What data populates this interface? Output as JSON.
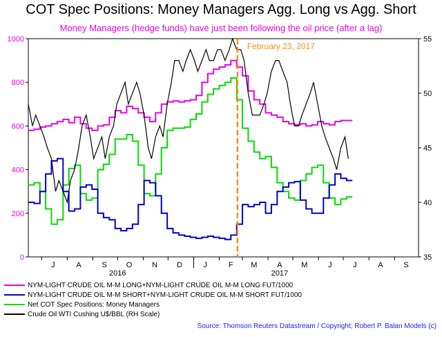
{
  "chart_data": {
    "type": "line",
    "title": "COT Spec Positions: Money Managers Agg. Long vs Agg. Short",
    "subtitle": "Money Managers (hedge funds) have just been following the oil price (after a lag)",
    "x_ticks": [
      "J",
      "A",
      "S",
      "O",
      "N",
      "D",
      "J",
      "F",
      "M",
      "A",
      "M",
      "J",
      "J",
      "A",
      "S"
    ],
    "x_ticks_dates": [
      "2016-07",
      "2016-08",
      "2016-09",
      "2016-10",
      "2016-11",
      "2016-12",
      "2017-01",
      "2017-02",
      "2017-03",
      "2017-04",
      "2017-05",
      "2017-06",
      "2017-07",
      "2017-08",
      "2017-09"
    ],
    "year_labels": [
      {
        "label": "2016",
        "date": "2016-10-01"
      },
      {
        "label": "2017",
        "date": "2017-04-15"
      }
    ],
    "x_range": [
      "2016-06-15",
      "2017-09-30"
    ],
    "y_left": {
      "range": [
        0,
        1000
      ],
      "ticks": [
        0,
        200,
        400,
        600,
        800,
        1000
      ]
    },
    "y_right": {
      "range": [
        35,
        55
      ],
      "ticks": [
        35,
        40,
        45,
        50,
        55
      ],
      "label": "RH Scale"
    },
    "annotation": {
      "label": "February 23, 2017",
      "date": "2017-02-23",
      "color": "#ff8c1a"
    },
    "series": [
      {
        "name": "NYM-LIGHT CRUDE OIL M-M LONG+NYM-LIGHT CRUDE OIL M-M LONG FUT/1000",
        "color": "#e600e6",
        "axis": "left",
        "step": true,
        "x": [
          "2016-06-15",
          "2016-06-22",
          "2016-06-29",
          "2016-07-06",
          "2016-07-13",
          "2016-07-20",
          "2016-07-27",
          "2016-08-03",
          "2016-08-10",
          "2016-08-17",
          "2016-08-24",
          "2016-08-31",
          "2016-09-07",
          "2016-09-14",
          "2016-09-21",
          "2016-09-28",
          "2016-10-05",
          "2016-10-12",
          "2016-10-19",
          "2016-10-26",
          "2016-11-02",
          "2016-11-09",
          "2016-11-16",
          "2016-11-23",
          "2016-11-30",
          "2016-12-07",
          "2016-12-14",
          "2016-12-21",
          "2016-12-28",
          "2017-01-04",
          "2017-01-11",
          "2017-01-18",
          "2017-01-25",
          "2017-02-01",
          "2017-02-08",
          "2017-02-15",
          "2017-02-22",
          "2017-03-01",
          "2017-03-08",
          "2017-03-15",
          "2017-03-22",
          "2017-03-29",
          "2017-04-05",
          "2017-04-12",
          "2017-04-19",
          "2017-04-26",
          "2017-05-03",
          "2017-05-10",
          "2017-05-17",
          "2017-05-24",
          "2017-05-31",
          "2017-06-07",
          "2017-06-14",
          "2017-06-21",
          "2017-06-28",
          "2017-07-05",
          "2017-07-12"
        ],
        "values": [
          580,
          585,
          595,
          600,
          610,
          620,
          630,
          615,
          640,
          610,
          590,
          580,
          600,
          605,
          640,
          670,
          660,
          690,
          680,
          660,
          640,
          620,
          660,
          700,
          710,
          715,
          710,
          715,
          720,
          740,
          800,
          840,
          860,
          870,
          880,
          900,
          870,
          830,
          760,
          720,
          700,
          660,
          650,
          640,
          620,
          610,
          605,
          610,
          600,
          605,
          620,
          610,
          605,
          620,
          625,
          625,
          625
        ]
      },
      {
        "name": "NYM-LIGHT CRUDE OIL M-M SHORT+NYM-LIGHT CRUDE OIL M-M SHORT FUT/1000",
        "color": "#0000cc",
        "axis": "left",
        "step": true,
        "x": [
          "2016-06-15",
          "2016-06-22",
          "2016-06-29",
          "2016-07-06",
          "2016-07-13",
          "2016-07-20",
          "2016-07-27",
          "2016-08-03",
          "2016-08-10",
          "2016-08-17",
          "2016-08-24",
          "2016-08-31",
          "2016-09-07",
          "2016-09-14",
          "2016-09-21",
          "2016-09-28",
          "2016-10-05",
          "2016-10-12",
          "2016-10-19",
          "2016-10-26",
          "2016-11-02",
          "2016-11-09",
          "2016-11-16",
          "2016-11-23",
          "2016-11-30",
          "2016-12-07",
          "2016-12-14",
          "2016-12-21",
          "2016-12-28",
          "2017-01-04",
          "2017-01-11",
          "2017-01-18",
          "2017-01-25",
          "2017-02-01",
          "2017-02-08",
          "2017-02-15",
          "2017-02-22",
          "2017-03-01",
          "2017-03-08",
          "2017-03-15",
          "2017-03-22",
          "2017-03-29",
          "2017-04-05",
          "2017-04-12",
          "2017-04-19",
          "2017-04-26",
          "2017-05-03",
          "2017-05-10",
          "2017-05-17",
          "2017-05-24",
          "2017-05-31",
          "2017-06-07",
          "2017-06-14",
          "2017-06-21",
          "2017-06-28",
          "2017-07-05",
          "2017-07-12"
        ],
        "values": [
          250,
          245,
          300,
          380,
          440,
          450,
          300,
          210,
          220,
          320,
          330,
          310,
          200,
          180,
          170,
          130,
          120,
          130,
          150,
          240,
          350,
          340,
          280,
          200,
          130,
          110,
          100,
          95,
          90,
          85,
          90,
          95,
          90,
          85,
          80,
          100,
          150,
          240,
          230,
          240,
          250,
          200,
          240,
          300,
          320,
          340,
          345,
          260,
          220,
          200,
          200,
          270,
          330,
          380,
          360,
          350,
          350
        ]
      },
      {
        "name": "Net COT Spec Positions: Money Managers",
        "color": "#00dd00",
        "axis": "left",
        "step": true,
        "x": [
          "2016-06-15",
          "2016-06-22",
          "2016-06-29",
          "2016-07-06",
          "2016-07-13",
          "2016-07-20",
          "2016-07-27",
          "2016-08-03",
          "2016-08-10",
          "2016-08-17",
          "2016-08-24",
          "2016-08-31",
          "2016-09-07",
          "2016-09-14",
          "2016-09-21",
          "2016-09-28",
          "2016-10-05",
          "2016-10-12",
          "2016-10-19",
          "2016-10-26",
          "2016-11-02",
          "2016-11-09",
          "2016-11-16",
          "2016-11-23",
          "2016-11-30",
          "2016-12-07",
          "2016-12-14",
          "2016-12-21",
          "2016-12-28",
          "2017-01-04",
          "2017-01-11",
          "2017-01-18",
          "2017-01-25",
          "2017-02-01",
          "2017-02-08",
          "2017-02-15",
          "2017-02-22",
          "2017-03-01",
          "2017-03-08",
          "2017-03-15",
          "2017-03-22",
          "2017-03-29",
          "2017-04-05",
          "2017-04-12",
          "2017-04-19",
          "2017-04-26",
          "2017-05-03",
          "2017-05-10",
          "2017-05-17",
          "2017-05-24",
          "2017-05-31",
          "2017-06-07",
          "2017-06-14",
          "2017-06-21",
          "2017-06-28",
          "2017-07-05",
          "2017-07-12"
        ],
        "values": [
          330,
          340,
          300,
          220,
          150,
          170,
          330,
          405,
          420,
          290,
          260,
          270,
          400,
          425,
          470,
          540,
          540,
          560,
          530,
          420,
          290,
          280,
          380,
          500,
          580,
          590,
          590,
          595,
          630,
          655,
          710,
          745,
          770,
          785,
          800,
          820,
          720,
          590,
          530,
          480,
          450,
          460,
          410,
          340,
          300,
          270,
          260,
          350,
          380,
          410,
          420,
          340,
          270,
          240,
          265,
          275,
          275
        ]
      },
      {
        "name": "Crude Oil WTI Cushing U$/BBL (RH Scale)",
        "color": "#000000",
        "axis": "right",
        "step": false,
        "x": [
          "2016-06-15",
          "2016-06-20",
          "2016-06-24",
          "2016-06-29",
          "2016-07-04",
          "2016-07-08",
          "2016-07-13",
          "2016-07-18",
          "2016-07-22",
          "2016-07-27",
          "2016-08-01",
          "2016-08-05",
          "2016-08-10",
          "2016-08-15",
          "2016-08-19",
          "2016-08-24",
          "2016-08-29",
          "2016-09-02",
          "2016-09-07",
          "2016-09-12",
          "2016-09-16",
          "2016-09-21",
          "2016-09-26",
          "2016-09-30",
          "2016-10-05",
          "2016-10-10",
          "2016-10-14",
          "2016-10-19",
          "2016-10-24",
          "2016-10-28",
          "2016-11-02",
          "2016-11-07",
          "2016-11-11",
          "2016-11-16",
          "2016-11-21",
          "2016-11-25",
          "2016-11-30",
          "2016-12-05",
          "2016-12-09",
          "2016-12-14",
          "2016-12-19",
          "2016-12-23",
          "2016-12-28",
          "2017-01-02",
          "2017-01-06",
          "2017-01-11",
          "2017-01-16",
          "2017-01-20",
          "2017-01-25",
          "2017-01-30",
          "2017-02-03",
          "2017-02-08",
          "2017-02-13",
          "2017-02-17",
          "2017-02-22",
          "2017-02-27",
          "2017-03-03",
          "2017-03-08",
          "2017-03-13",
          "2017-03-17",
          "2017-03-22",
          "2017-03-27",
          "2017-03-31",
          "2017-04-05",
          "2017-04-10",
          "2017-04-14",
          "2017-04-19",
          "2017-04-24",
          "2017-04-28",
          "2017-05-03",
          "2017-05-08",
          "2017-05-12",
          "2017-05-17",
          "2017-05-22",
          "2017-05-26",
          "2017-05-31",
          "2017-06-05",
          "2017-06-09",
          "2017-06-14",
          "2017-06-19",
          "2017-06-23",
          "2017-06-28",
          "2017-07-03",
          "2017-07-07"
        ],
        "values": [
          49,
          47,
          48,
          47,
          46,
          45,
          44,
          41,
          42,
          41,
          40,
          42,
          43,
          45,
          47,
          48,
          46,
          44,
          45,
          46,
          44,
          46,
          47,
          49,
          50,
          51,
          49,
          50,
          51,
          50,
          48,
          45,
          44,
          46,
          47,
          46,
          49,
          51,
          53,
          53,
          52,
          53,
          54,
          53,
          52,
          53,
          54,
          53,
          53,
          54,
          54,
          53,
          54,
          55,
          54,
          54,
          53,
          50,
          48,
          48,
          48,
          49,
          50,
          52,
          53,
          53,
          52,
          51,
          49,
          47,
          47,
          48,
          49,
          50,
          51,
          49,
          47,
          46,
          45,
          44,
          43,
          45,
          46,
          44
        ]
      }
    ]
  },
  "legend": [
    {
      "label": "NYM-LIGHT CRUDE OIL M-M LONG+NYM-LIGHT CRUDE OIL M-M LONG FUT/1000",
      "color": "#e600e6"
    },
    {
      "label": "NYM-LIGHT CRUDE OIL M-M SHORT+NYM-LIGHT CRUDE OIL M-M SHORT FUT/1000",
      "color": "#0000cc"
    },
    {
      "label": "Net COT Spec Positions: Money Managers",
      "color": "#00dd00"
    },
    {
      "label": "Crude Oil WTI Cushing U$/BBL (RH Scale)",
      "color": "#000000"
    }
  ],
  "source": "Source: Thomson Reuters Datastream / Copyright; Robert P. Balan Models (c)"
}
